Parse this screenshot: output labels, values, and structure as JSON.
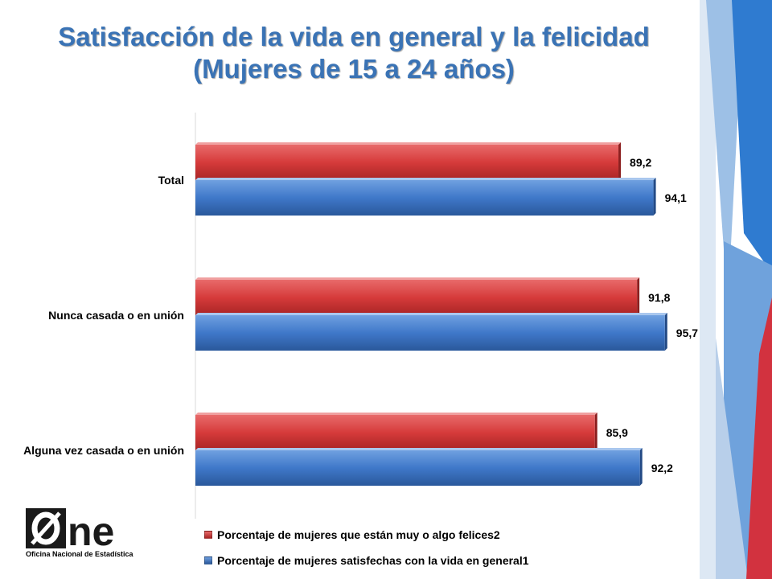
{
  "title": {
    "line1": "Satisfacción de la vida en general y la felicidad",
    "line2": "(Mujeres de 15 a 24 años)"
  },
  "colors": {
    "title": "#3a73b5",
    "series_red": "#d63b3b",
    "series_blue": "#3f78c9"
  },
  "chart_data": {
    "type": "bar",
    "orientation": "horizontal",
    "categories": [
      "Total",
      "Nunca casada o en unión",
      "Alguna vez casada o en unión"
    ],
    "series": [
      {
        "name": "Porcentaje de mujeres que están muy o algo felices2",
        "color": "#d63b3b",
        "values": [
          89.2,
          91.8,
          85.9
        ],
        "labels": [
          "89,2",
          "91,8",
          "85,9"
        ]
      },
      {
        "name": "Porcentaje de mujeres satisfechas con la vida en general1",
        "color": "#3f78c9",
        "values": [
          94.1,
          95.7,
          92.2
        ],
        "labels": [
          "94,1",
          "95,7",
          "92,2"
        ]
      }
    ],
    "xlim": [
      30,
      100
    ],
    "grid": false,
    "legend_position": "bottom"
  },
  "logo": {
    "text": "ne",
    "caption": "Oficina Nacional de Estadística"
  }
}
